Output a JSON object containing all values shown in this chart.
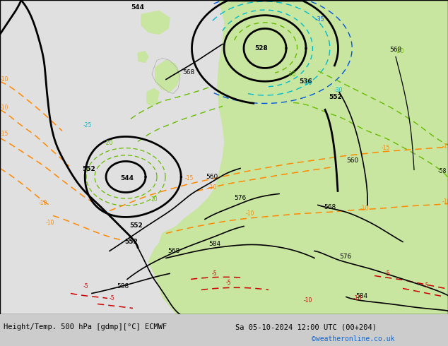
{
  "title_left": "Height/Temp. 500 hPa [gdmp][°C] ECMWF",
  "title_right": "Sa 05-10-2024 12:00 UTC (00+204)",
  "credit": "©weatheronline.co.uk",
  "ocean_color": "#e0e0e0",
  "land_color": "#c8e6a0",
  "land_dark_color": "#aad080",
  "coast_color": "#a0a0a0",
  "z500_color": "#000000",
  "temp_orange": "#ff8800",
  "temp_blue": "#0055dd",
  "temp_cyan": "#00bbcc",
  "temp_red": "#cc0000",
  "temp_green": "#66bb00",
  "bottom_bg": "#cccccc"
}
